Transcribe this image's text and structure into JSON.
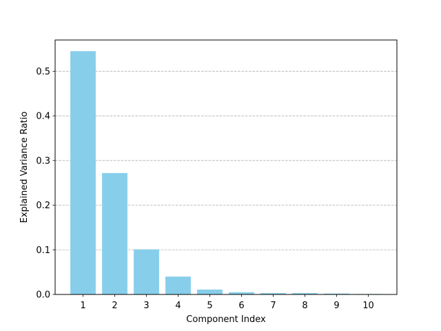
{
  "chart_data": {
    "type": "bar",
    "title": "",
    "xlabel": "Component Index",
    "ylabel": "Explained Variance Ratio",
    "categories": [
      "1",
      "2",
      "3",
      "4",
      "5",
      "6",
      "7",
      "8",
      "9",
      "10"
    ],
    "values": [
      0.545,
      0.272,
      0.101,
      0.04,
      0.011,
      0.005,
      0.003,
      0.003,
      0.002,
      0.001
    ],
    "ylim": [
      0,
      0.57
    ],
    "yticks": [
      "0.0",
      "0.1",
      "0.2",
      "0.3",
      "0.4",
      "0.5"
    ],
    "ytick_values": [
      0,
      0.1,
      0.2,
      0.3,
      0.4,
      0.5
    ],
    "grid": "y-dashed",
    "bar_color": "#87ceeb",
    "grid_color": "#b0b0b0"
  }
}
